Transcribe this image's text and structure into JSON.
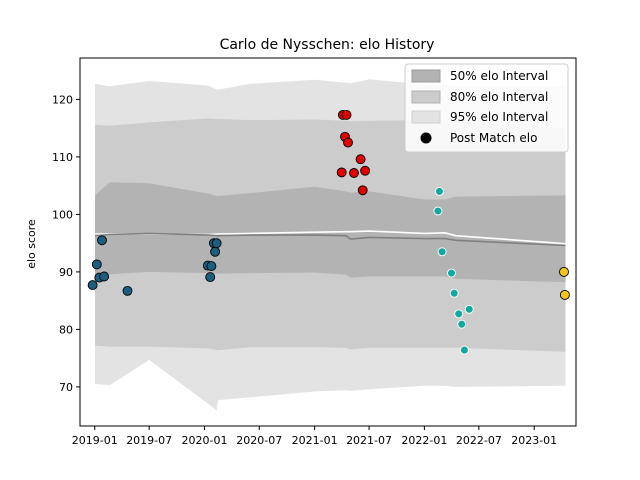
{
  "chart_data": {
    "type": "scatter",
    "title": "Carlo de Nysschen: elo History",
    "xlabel": "",
    "ylabel": "elo score",
    "xlim": [
      "2018-11-13",
      "2023-05-20"
    ],
    "ylim": [
      63.2,
      127.2
    ],
    "x_ticks": [
      "2019-01",
      "2019-07",
      "2020-01",
      "2020-07",
      "2021-01",
      "2021-07",
      "2022-01",
      "2022-07",
      "2023-01"
    ],
    "y_ticks": [
      70,
      80,
      90,
      100,
      110,
      120
    ],
    "legend": {
      "placement": "top-right",
      "entries": [
        "50% elo Interval",
        "80% elo Interval",
        "95% elo Interval",
        "Post Match elo"
      ]
    },
    "colors": {
      "band_50": "#b3b3b3",
      "band_80": "#cccccc",
      "band_95": "#e3e3e3",
      "mean_line": "#808080",
      "upper_line": "#ffffff",
      "series_2019": "#1b5e7e",
      "series_2020": "#1b5e7e",
      "series_2021": "#e00000",
      "series_2022": "#13a89e",
      "series_2023": "#f5c518"
    },
    "bands": {
      "x": [
        "2019-01-02",
        "2019-02-20",
        "2019-07-01",
        "2020-01-15",
        "2020-02-10",
        "2020-02-15",
        "2020-06-01",
        "2021-01-01",
        "2021-04-15",
        "2021-05-01",
        "2021-07-01",
        "2022-01-01",
        "2022-03-10",
        "2022-04-15",
        "2023-04-15"
      ],
      "mean": [
        96.3,
        96.5,
        96.7,
        96.4,
        96.3,
        96.3,
        96.4,
        96.4,
        96.3,
        95.7,
        96.0,
        95.8,
        95.8,
        95.5,
        94.6
      ],
      "upper": [
        96.6,
        96.6,
        96.6,
        96.5,
        96.6,
        96.6,
        96.7,
        96.9,
        97.0,
        97.0,
        97.1,
        96.7,
        96.8,
        96.3,
        94.9
      ],
      "p50_low": [
        89.7,
        89.6,
        90.0,
        89.8,
        89.7,
        89.7,
        89.8,
        89.9,
        89.5,
        89.0,
        89.2,
        89.2,
        89.2,
        88.8,
        88.2
      ],
      "p50_high": [
        103.3,
        105.6,
        105.4,
        103.6,
        103.2,
        103.2,
        103.7,
        104.8,
        104.0,
        103.8,
        104.0,
        102.6,
        102.6,
        103.1,
        103.3
      ],
      "p80_low": [
        77.2,
        77.0,
        77.0,
        76.7,
        76.4,
        76.4,
        76.9,
        76.9,
        76.8,
        76.5,
        76.8,
        76.8,
        76.8,
        76.8,
        76.1
      ],
      "p80_high": [
        115.6,
        115.4,
        116.0,
        116.7,
        116.6,
        116.6,
        116.4,
        116.5,
        116.3,
        116.2,
        116.3,
        116.4,
        116.4,
        116.1,
        114.9
      ],
      "p95_low": [
        70.5,
        70.3,
        74.7,
        67.0,
        65.9,
        67.7,
        68.2,
        69.2,
        69.4,
        69.3,
        69.6,
        70.2,
        70.2,
        70.0,
        70.2
      ],
      "p95_high": [
        122.7,
        122.3,
        123.2,
        122.4,
        121.7,
        121.7,
        122.7,
        123.4,
        122.9,
        122.8,
        123.5,
        122.6,
        122.6,
        122.2,
        122.3
      ]
    },
    "series": [
      {
        "key": "2019",
        "x": [
          "2018-12-25",
          "2019-01-08",
          "2019-01-16",
          "2019-01-25",
          "2019-02-01",
          "2019-04-20"
        ],
        "y": [
          87.7,
          91.3,
          89.0,
          95.5,
          89.2,
          86.7
        ]
      },
      {
        "key": "2020",
        "x": [
          "2020-01-12",
          "2020-01-20",
          "2020-01-24",
          "2020-02-01",
          "2020-02-05",
          "2020-02-10"
        ],
        "y": [
          91.1,
          89.1,
          91.0,
          95.0,
          93.5,
          95.0
        ]
      },
      {
        "key": "2021",
        "x": [
          "2021-04-01",
          "2021-04-05",
          "2021-04-12",
          "2021-04-17",
          "2021-04-22",
          "2021-05-12",
          "2021-06-03",
          "2021-06-10",
          "2021-06-18"
        ],
        "y": [
          107.3,
          117.3,
          113.5,
          117.3,
          112.5,
          107.2,
          109.6,
          104.2,
          107.6
        ]
      },
      {
        "key": "2022",
        "x": [
          "2022-02-15",
          "2022-02-20",
          "2022-03-01",
          "2022-04-01",
          "2022-04-10",
          "2022-04-25",
          "2022-05-05",
          "2022-05-14",
          "2022-05-30"
        ],
        "y": [
          100.6,
          104.0,
          93.5,
          89.8,
          86.3,
          82.7,
          80.9,
          76.4,
          83.5
        ]
      },
      {
        "key": "2023",
        "x": [
          "2023-04-10",
          "2023-04-13"
        ],
        "y": [
          90.0,
          86.0
        ]
      }
    ]
  }
}
